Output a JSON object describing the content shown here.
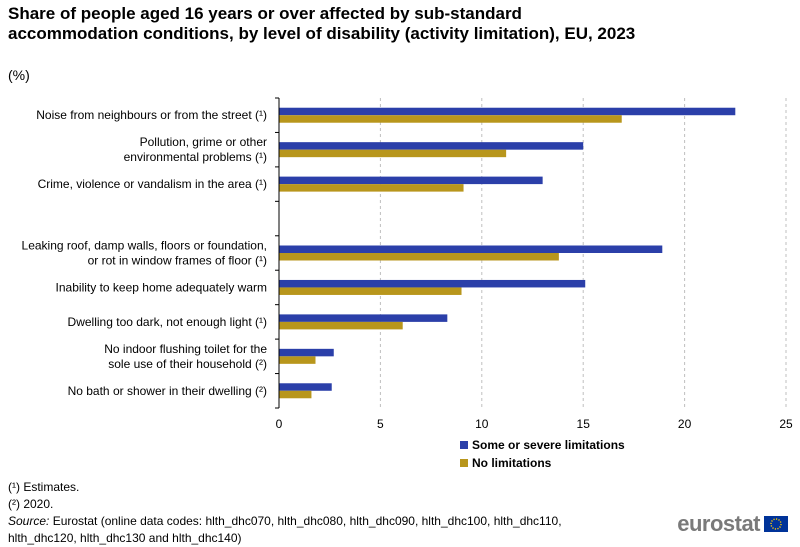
{
  "title": "Share of people aged 16 years or over affected by sub-standard accommodation conditions, by level of disability (activity limitation), EU, 2023",
  "unit": "(%)",
  "colors": {
    "series1": "#2b3fa9",
    "series2": "#b8961c",
    "grid": "#bfbfbf"
  },
  "chart_data": {
    "type": "bar",
    "orientation": "horizontal",
    "categories": [
      "Noise from neighbours or from the street (¹)",
      "Pollution, grime or other environmental problems (¹)",
      "Crime, violence or vandalism in the area (¹)",
      "",
      "Leaking roof, damp walls, floors or foundation, or rot in window frames of floor (¹)",
      "Inability to keep home adequately warm",
      "Dwelling too dark, not enough light (¹)",
      "No indoor flushing toilet for the sole use of their household (²)",
      "No bath or shower in their dwelling (²)"
    ],
    "category_lines": [
      [
        "Noise from neighbours or from the street (¹)"
      ],
      [
        "Pollution, grime or other",
        "environmental problems (¹)"
      ],
      [
        "Crime, violence or vandalism in the area (¹)"
      ],
      [],
      [
        "Leaking roof, damp walls, floors or foundation,",
        "or rot in window frames of floor (¹)"
      ],
      [
        "Inability to keep home adequately warm"
      ],
      [
        "Dwelling too dark, not enough light (¹)"
      ],
      [
        "No indoor flushing toilet for the",
        "sole use of their household (²)"
      ],
      [
        "No bath or shower in their dwelling (²)"
      ]
    ],
    "series": [
      {
        "name": "Some or severe limitations",
        "values": [
          22.5,
          15.0,
          13.0,
          null,
          18.9,
          15.1,
          8.3,
          2.7,
          2.6
        ]
      },
      {
        "name": "No limitations",
        "values": [
          16.9,
          11.2,
          9.1,
          null,
          13.8,
          9.0,
          6.1,
          1.8,
          1.6
        ]
      }
    ],
    "xlim": [
      0,
      25
    ],
    "xticks": [
      0,
      5,
      10,
      15,
      20,
      25
    ],
    "grid": "vertical-dashed",
    "legend": "bottom"
  },
  "legend": {
    "items": [
      "Some or severe limitations",
      "No limitations"
    ]
  },
  "footnotes": [
    "(¹) Estimates.",
    "(²) 2020."
  ],
  "source": {
    "label": "Source:",
    "text": " Eurostat (online data codes: hlth_dhc070, hlth_dhc080, hlth_dhc090, hlth_dhc100, hlth_dhc110, hlth_dhc120, hlth_dhc130 and hlth_dhc140)"
  },
  "logo": {
    "text": "eurostat",
    "icon": "eu-flag-icon"
  }
}
